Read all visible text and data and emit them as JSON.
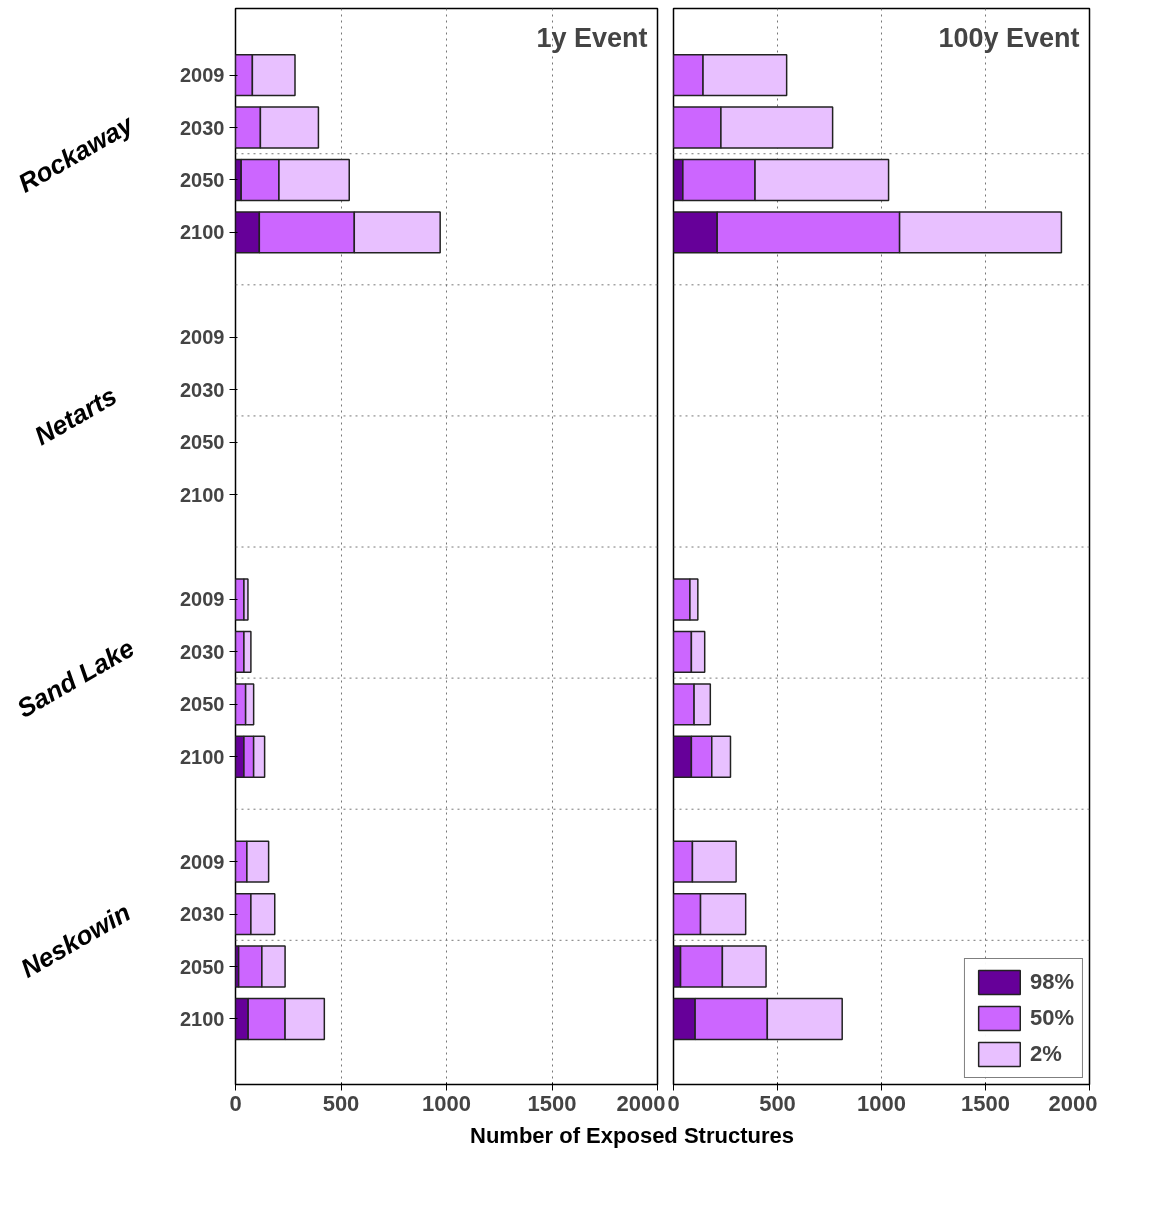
{
  "chart_data": [
    {
      "type": "bar",
      "orientation": "horizontal",
      "stacked": true,
      "title": "1y Event",
      "xlabel": "Number of Exposed Structures",
      "categories": [
        "2009",
        "2030",
        "2050",
        "2100",
        null,
        "2009",
        "2030",
        "2050",
        "2100",
        null,
        "2009",
        "2030",
        "2050",
        "2100",
        null,
        "2009",
        "2030",
        "2050",
        "2100"
      ],
      "annotations": [
        "Rockaway",
        "Netarts",
        "Sand Lake",
        "Neskowin"
      ],
      "series": [
        {
          "color": "#660099",
          "values": [
            null,
            null,
            27,
            113,
            null,
            null,
            null,
            null,
            null,
            null,
            null,
            null,
            null,
            40,
            null,
            null,
            null,
            15,
            60
          ]
        },
        {
          "color": "#cc66ff",
          "values": [
            80,
            118,
            179,
            450,
            null,
            null,
            null,
            null,
            null,
            null,
            40,
            40,
            48,
            46,
            null,
            54,
            73,
            110,
            175
          ]
        },
        {
          "color": "#e8c0ff",
          "values": [
            202,
            275,
            333,
            407,
            null,
            null,
            null,
            null,
            null,
            null,
            19,
            33,
            38,
            52,
            null,
            103,
            113,
            110,
            186
          ]
        }
      ],
      "xlim": [
        0,
        2000
      ],
      "xticks": [
        0,
        500,
        1000,
        1500,
        2000
      ],
      "grid": true,
      "legend": false
    },
    {
      "type": "bar",
      "orientation": "horizontal",
      "stacked": true,
      "title": "100y Event",
      "categories": [
        "2009",
        "2030",
        "2050",
        "2100",
        null,
        "2009",
        "2030",
        "2050",
        "2100",
        null,
        "2009",
        "2030",
        "2050",
        "2100",
        null,
        "2009",
        "2030",
        "2050",
        "2100"
      ],
      "series": [
        {
          "name": "98%",
          "color": "#660099",
          "values": [
            null,
            null,
            45,
            210,
            null,
            null,
            null,
            null,
            null,
            null,
            null,
            null,
            null,
            86,
            null,
            null,
            null,
            34,
            104
          ]
        },
        {
          "name": "50%",
          "color": "#cc66ff",
          "values": [
            142,
            228,
            347,
            877,
            null,
            null,
            null,
            null,
            null,
            null,
            79,
            86,
            99,
            98,
            null,
            91,
            130,
            201,
            347
          ]
        },
        {
          "name": "2%",
          "color": "#e8c0ff",
          "values": [
            402,
            537,
            642,
            778,
            null,
            null,
            null,
            null,
            null,
            null,
            38,
            64,
            78,
            90,
            null,
            210,
            217,
            210,
            360
          ]
        }
      ],
      "xlim": [
        0,
        2000
      ],
      "xticks": [
        0,
        500,
        1000,
        1500,
        2000
      ],
      "grid": true,
      "legend": "bottom right",
      "tick_labels": "x"
    }
  ]
}
